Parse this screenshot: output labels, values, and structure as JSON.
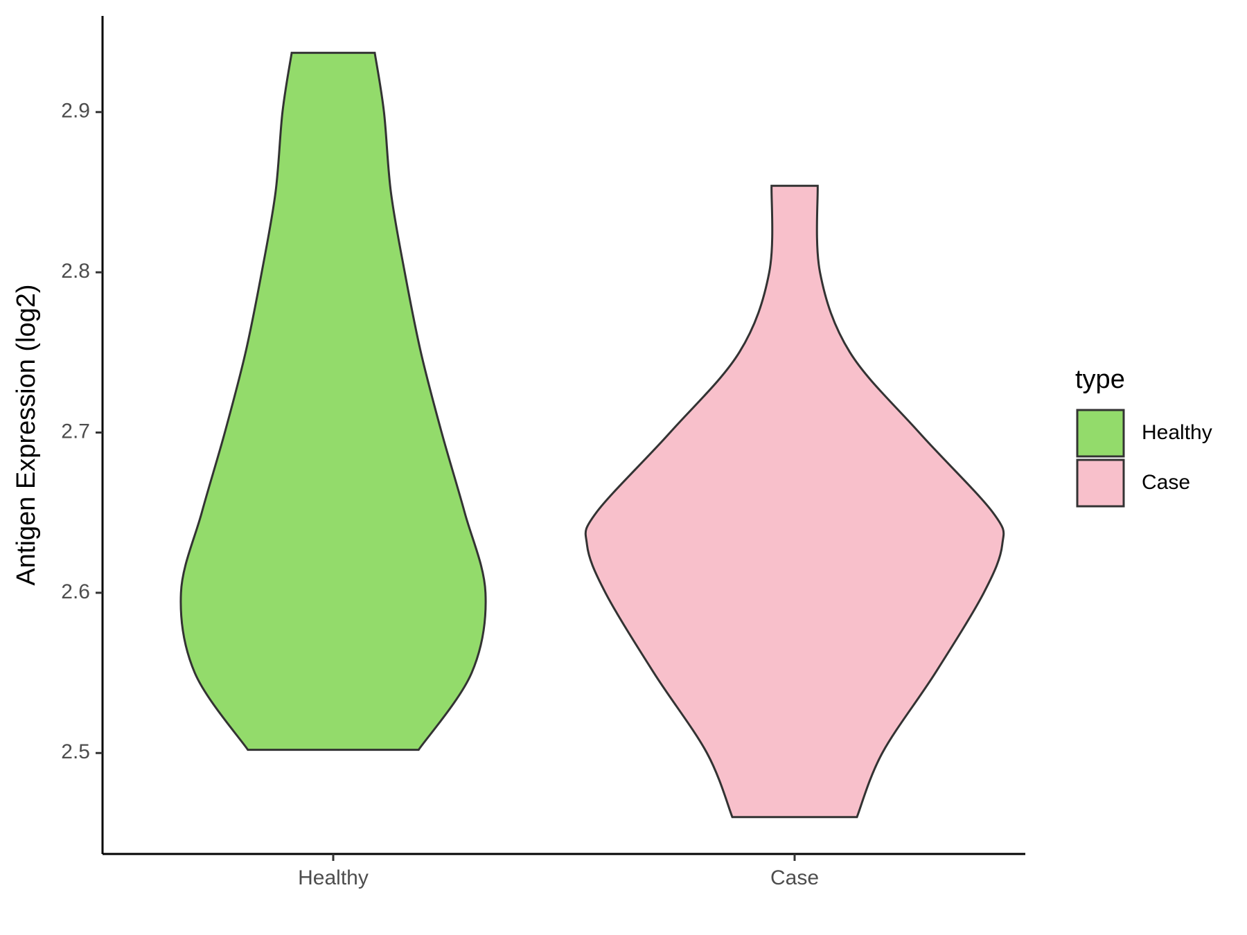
{
  "chart_data": {
    "type": "violin",
    "y_label": "Antigen Expression (log2)",
    "legend_title": "type",
    "categories": [
      "Healthy",
      "Case"
    ],
    "series": [
      {
        "name": "Healthy",
        "color": "#93db6b",
        "y": [
          2.937,
          2.9,
          2.85,
          2.8,
          2.75,
          2.7,
          2.65,
          2.6,
          2.55,
          2.502
        ],
        "width": [
          0.18,
          0.22,
          0.25,
          0.31,
          0.38,
          0.47,
          0.57,
          0.66,
          0.6,
          0.37
        ]
      },
      {
        "name": "Case",
        "color": "#f8c0cb",
        "y": [
          2.854,
          2.8,
          2.75,
          2.7,
          2.65,
          2.63,
          2.6,
          2.55,
          2.5,
          2.46
        ],
        "width": [
          0.1,
          0.11,
          0.24,
          0.54,
          0.86,
          0.9,
          0.82,
          0.61,
          0.38,
          0.27
        ]
      }
    ],
    "ylim": [
      2.437,
      2.96
    ],
    "yticks": [
      2.5,
      2.6,
      2.7,
      2.8,
      2.9
    ]
  }
}
